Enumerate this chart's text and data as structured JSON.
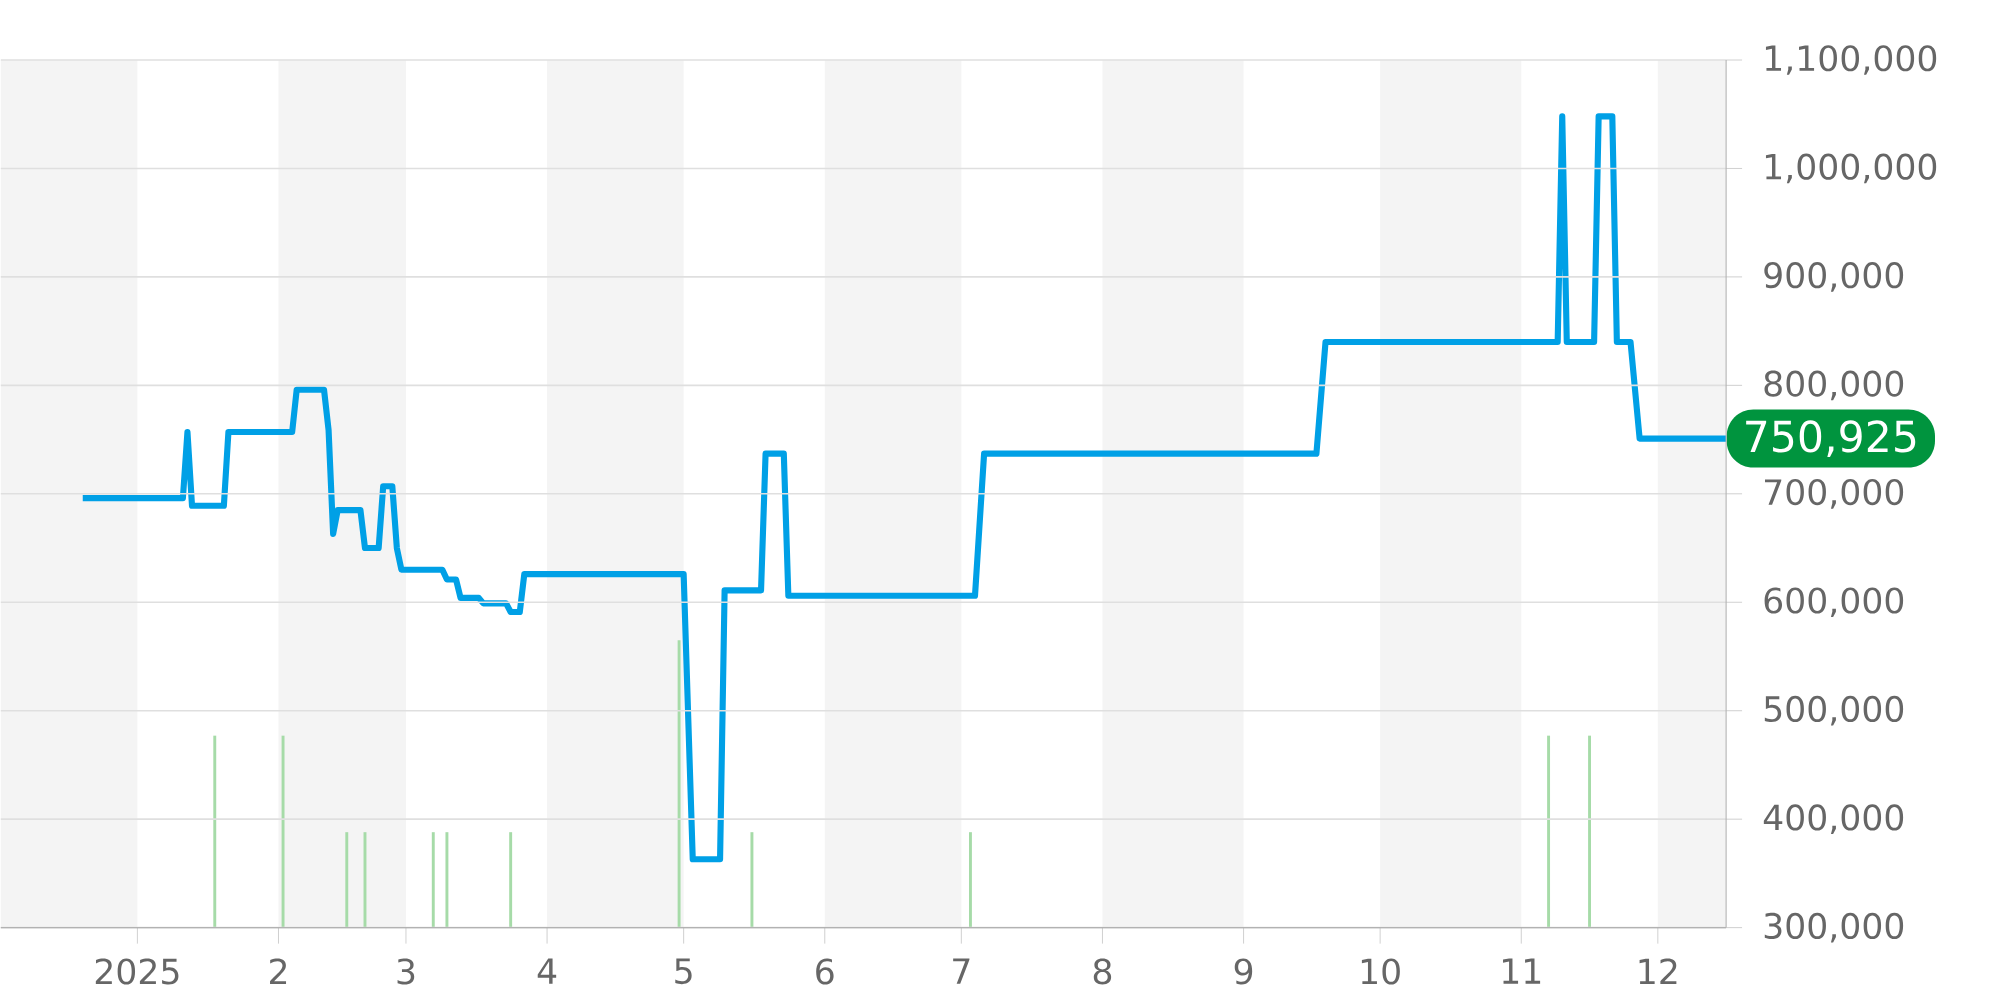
{
  "chart_data": {
    "type": "line",
    "xlim": [
      "2024-12-02",
      "2025-12-16"
    ],
    "xticks": [
      {
        "value": "2025-01-01",
        "label": "2025"
      },
      {
        "value": "2025-02-01",
        "label": "2"
      },
      {
        "value": "2025-03-01",
        "label": "3"
      },
      {
        "value": "2025-04-01",
        "label": "4"
      },
      {
        "value": "2025-05-01",
        "label": "5"
      },
      {
        "value": "2025-06-01",
        "label": "6"
      },
      {
        "value": "2025-07-01",
        "label": "7"
      },
      {
        "value": "2025-08-01",
        "label": "8"
      },
      {
        "value": "2025-09-01",
        "label": "9"
      },
      {
        "value": "2025-10-01",
        "label": "10"
      },
      {
        "value": "2025-11-01",
        "label": "11"
      },
      {
        "value": "2025-12-01",
        "label": "12"
      }
    ],
    "ylim": [
      300000,
      1100000
    ],
    "yticks": [
      {
        "value": 300000,
        "label": "300,000"
      },
      {
        "value": 400000,
        "label": "400,000"
      },
      {
        "value": 500000,
        "label": "500,000"
      },
      {
        "value": 600000,
        "label": "600,000"
      },
      {
        "value": 700000,
        "label": "700,000"
      },
      {
        "value": 800000,
        "label": "800,000"
      },
      {
        "value": 900000,
        "label": "900,000"
      },
      {
        "value": 1000000,
        "label": "1,000,000"
      },
      {
        "value": 1100000,
        "label": "1,100,000"
      }
    ],
    "grid": "y",
    "bands": [
      {
        "axis": "x",
        "from": "2024-12-02",
        "to": "2025-01-01",
        "color": "#f4f4f4"
      },
      {
        "axis": "x",
        "from": "2025-02-01",
        "to": "2025-03-01",
        "color": "#f4f4f4"
      },
      {
        "axis": "x",
        "from": "2025-04-01",
        "to": "2025-05-01",
        "color": "#f4f4f4"
      },
      {
        "axis": "x",
        "from": "2025-06-01",
        "to": "2025-07-01",
        "color": "#f4f4f4"
      },
      {
        "axis": "x",
        "from": "2025-08-01",
        "to": "2025-09-01",
        "color": "#f4f4f4"
      },
      {
        "axis": "x",
        "from": "2025-10-01",
        "to": "2025-11-01",
        "color": "#f4f4f4"
      },
      {
        "axis": "x",
        "from": "2025-12-01",
        "to": "2025-12-16",
        "color": "#f4f4f4"
      }
    ],
    "series": [
      {
        "type": "bar",
        "color": "#a6dba8",
        "x": [
          "2025-01-18",
          "2025-02-02",
          "2025-02-16",
          "2025-02-20",
          "2025-03-07",
          "2025-03-10",
          "2025-03-24",
          "2025-04-30",
          "2025-05-16",
          "2025-07-03",
          "2025-11-07",
          "2025-11-16"
        ],
        "values": [
          477000,
          477000,
          388000,
          388000,
          388000,
          388000,
          388000,
          565000,
          388000,
          388000,
          477000,
          477000
        ]
      },
      {
        "color": "#00a0e6",
        "x": [
          "2024-12-20",
          "2025-01-11",
          "2025-01-12",
          "2025-01-13",
          "2025-01-20",
          "2025-01-21",
          "2025-02-04",
          "2025-02-05",
          "2025-02-11",
          "2025-02-12",
          "2025-02-13",
          "2025-02-14",
          "2025-02-19",
          "2025-02-20",
          "2025-02-23",
          "2025-02-24",
          "2025-02-26",
          "2025-02-27",
          "2025-02-28",
          "2025-03-09",
          "2025-03-10",
          "2025-03-12",
          "2025-03-13",
          "2025-03-17",
          "2025-03-18",
          "2025-03-23",
          "2025-03-24",
          "2025-03-26",
          "2025-03-27",
          "2025-05-01",
          "2025-05-03",
          "2025-05-09",
          "2025-05-10",
          "2025-05-18",
          "2025-05-19",
          "2025-05-23",
          "2025-05-24",
          "2025-07-04",
          "2025-07-06",
          "2025-09-17",
          "2025-09-19",
          "2025-11-09",
          "2025-11-10",
          "2025-11-11",
          "2025-11-17",
          "2025-11-18",
          "2025-11-21",
          "2025-11-22",
          "2025-11-25",
          "2025-11-27",
          "2025-12-16"
        ],
        "values": [
          696000,
          696000,
          757000,
          689000,
          689000,
          757000,
          757000,
          796000,
          796000,
          759000,
          663000,
          685000,
          685000,
          650000,
          650000,
          707000,
          707000,
          650000,
          630000,
          630000,
          621000,
          621000,
          604000,
          604000,
          599000,
          599000,
          591000,
          591000,
          626000,
          626000,
          363000,
          363000,
          611000,
          611000,
          737000,
          737000,
          606000,
          606000,
          737000,
          737000,
          840000,
          840000,
          1048000,
          840000,
          840000,
          1048000,
          1048000,
          840000,
          840000,
          750925,
          750925
        ],
        "value_labels": [
          null,
          null,
          null,
          null,
          null,
          null,
          null,
          null,
          null,
          null,
          null,
          null,
          null,
          null,
          null,
          null,
          null,
          null,
          null,
          null,
          null,
          null,
          null,
          null,
          null,
          null,
          null,
          null,
          null,
          null,
          null,
          null,
          null,
          null,
          null,
          null,
          null,
          null,
          null,
          null,
          null,
          null,
          null,
          null,
          null,
          null,
          null,
          null,
          null,
          null,
          "750,925"
        ]
      }
    ]
  }
}
